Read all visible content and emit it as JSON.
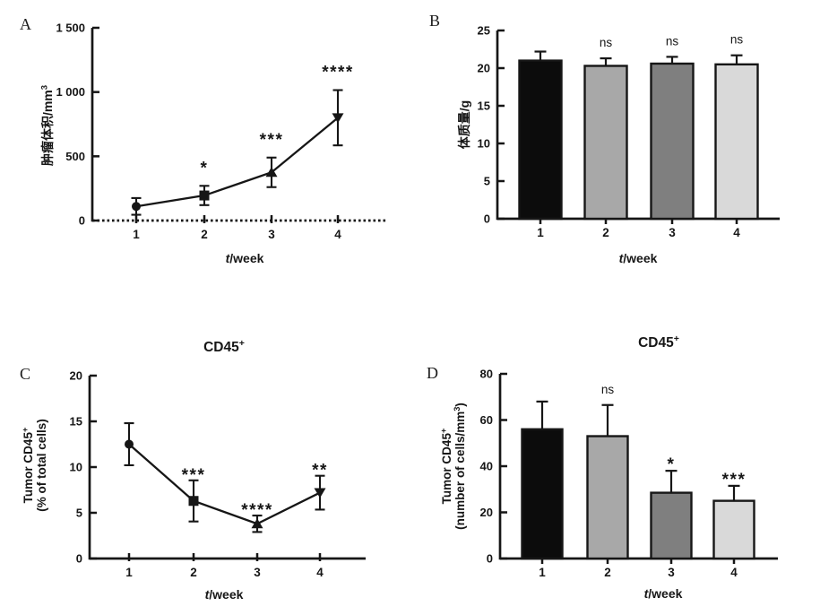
{
  "figure": {
    "background": "#ffffff",
    "ink_color": "#161616"
  },
  "chart_data": [
    {
      "panel_letter": "A",
      "type": "line",
      "title": null,
      "xlabel": {
        "italic": "t",
        "text": "/week"
      },
      "ylabel_lines": [
        {
          "text": "肿瘤体积/mm",
          "sup": "3",
          "after": ""
        }
      ],
      "categories": [
        "1",
        "2",
        "3",
        "4"
      ],
      "values": [
        110,
        195,
        375,
        800
      ],
      "errors": [
        65,
        75,
        115,
        215
      ],
      "significance": [
        "",
        "*",
        "***",
        "****"
      ],
      "markers": [
        "circle",
        "square",
        "triangle-up",
        "triangle-down"
      ],
      "ylim": [
        0,
        1500
      ],
      "yticks": [
        {
          "value": 0,
          "label": "0"
        },
        {
          "value": 500,
          "label": "500"
        },
        {
          "value": 1000,
          "label": "1 000"
        },
        {
          "value": 1500,
          "label": "1 500"
        }
      ],
      "x_axis_style": "dotted",
      "grid": false
    },
    {
      "panel_letter": "B",
      "type": "bar",
      "title": null,
      "xlabel": {
        "italic": "t",
        "text": "/week"
      },
      "ylabel_lines": [
        {
          "text": "体质量/g",
          "sup": "",
          "after": ""
        }
      ],
      "categories": [
        "1",
        "2",
        "3",
        "4"
      ],
      "values": [
        21.0,
        20.3,
        20.6,
        20.5
      ],
      "errors": [
        1.2,
        1.0,
        0.9,
        1.2
      ],
      "significance": [
        "",
        "ns",
        "ns",
        "ns"
      ],
      "bar_colors": [
        "#0c0c0c",
        "#a8a8a8",
        "#7f7f7f",
        "#d9d9d9"
      ],
      "ylim": [
        0,
        25
      ],
      "yticks": [
        {
          "value": 0,
          "label": "0"
        },
        {
          "value": 5,
          "label": "5"
        },
        {
          "value": 10,
          "label": "10"
        },
        {
          "value": 15,
          "label": "15"
        },
        {
          "value": 20,
          "label": "20"
        },
        {
          "value": 25,
          "label": "25"
        }
      ],
      "x_axis_style": "solid",
      "grid": false
    },
    {
      "panel_letter": "C",
      "type": "line",
      "title": {
        "text": "CD45",
        "sup": "+",
        "after": ""
      },
      "xlabel": {
        "italic": "t",
        "text": "/week"
      },
      "ylabel_lines": [
        {
          "text": "Tumor CD45",
          "sup": "+",
          "after": ""
        },
        {
          "text": "(% of total cells)",
          "sup": "",
          "after": ""
        }
      ],
      "categories": [
        "1",
        "2",
        "3",
        "4"
      ],
      "values": [
        12.5,
        6.3,
        3.8,
        7.2
      ],
      "errors": [
        2.3,
        2.25,
        0.9,
        1.85
      ],
      "significance": [
        "",
        "***",
        "****",
        "**"
      ],
      "markers": [
        "circle",
        "square",
        "triangle-up",
        "triangle-down"
      ],
      "ylim": [
        0,
        20
      ],
      "yticks": [
        {
          "value": 0,
          "label": "0"
        },
        {
          "value": 5,
          "label": "5"
        },
        {
          "value": 10,
          "label": "10"
        },
        {
          "value": 15,
          "label": "15"
        },
        {
          "value": 20,
          "label": "20"
        }
      ],
      "x_axis_style": "solid",
      "grid": false
    },
    {
      "panel_letter": "D",
      "type": "bar",
      "title": {
        "text": "CD45",
        "sup": "+",
        "after": ""
      },
      "xlabel": {
        "italic": "t",
        "text": "/week"
      },
      "ylabel_lines": [
        {
          "text": "Tumor CD45",
          "sup": "+",
          "after": ""
        },
        {
          "text": "(number of cells/mm",
          "sup": "3",
          "after": ")"
        }
      ],
      "categories": [
        "1",
        "2",
        "3",
        "4"
      ],
      "values": [
        56,
        53,
        28.5,
        25
      ],
      "errors": [
        12,
        13.5,
        9.5,
        6.5
      ],
      "significance": [
        "",
        "ns",
        "*",
        "***"
      ],
      "bar_colors": [
        "#0c0c0c",
        "#a8a8a8",
        "#7f7f7f",
        "#d9d9d9"
      ],
      "ylim": [
        0,
        80
      ],
      "yticks": [
        {
          "value": 0,
          "label": "0"
        },
        {
          "value": 20,
          "label": "20"
        },
        {
          "value": 40,
          "label": "40"
        },
        {
          "value": 60,
          "label": "60"
        },
        {
          "value": 80,
          "label": "80"
        }
      ],
      "x_axis_style": "solid",
      "grid": false
    }
  ]
}
